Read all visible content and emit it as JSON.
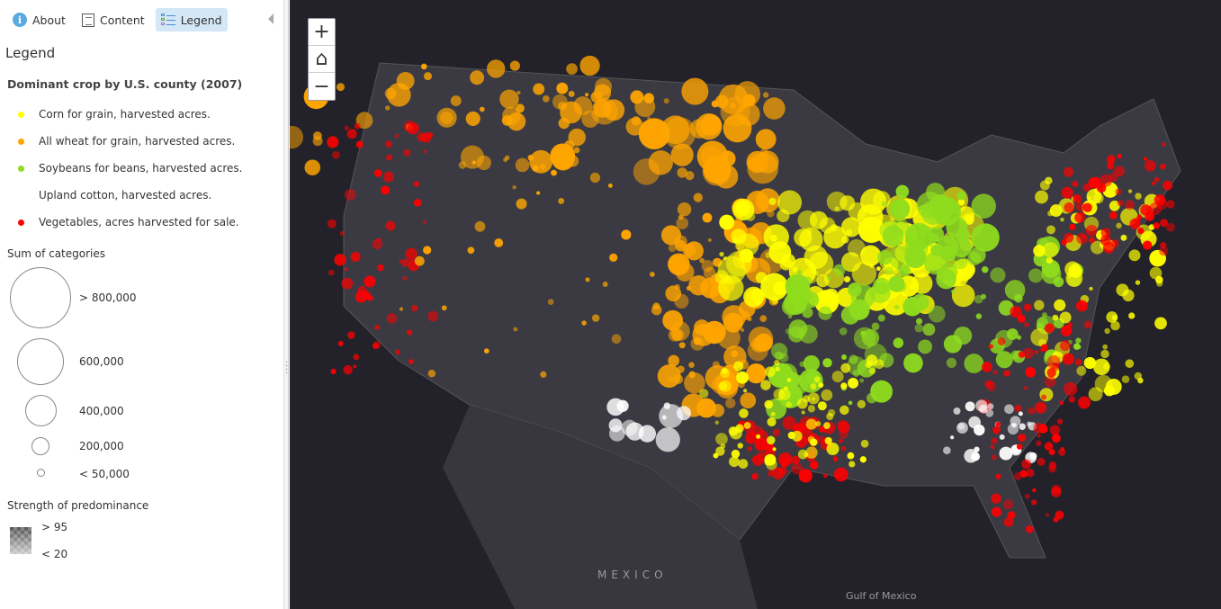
{
  "tabs": [
    {
      "label": "About",
      "icon": "info-icon"
    },
    {
      "label": "Content",
      "icon": "content-icon"
    },
    {
      "label": "Legend",
      "icon": "legend-icon",
      "active": true
    }
  ],
  "legend": {
    "heading": "Legend",
    "layer_title": "Dominant crop by U.S. county (2007)",
    "categories": [
      {
        "label": "Corn for grain, harvested acres.",
        "color": "#ffff00"
      },
      {
        "label": "All wheat for grain, harvested acres.",
        "color": "#ffa500"
      },
      {
        "label": "Soybeans for beans, harvested acres.",
        "color": "#8fdc1e"
      },
      {
        "label": "Upland cotton, harvested acres.",
        "color": "#ffffff"
      },
      {
        "label": "Vegetables, acres harvested for sale.",
        "color": "#ff0000"
      }
    ],
    "size_title": "Sum of categories",
    "sizes": [
      "> 800,000",
      "600,000",
      "400,000",
      "200,000",
      "< 50,000"
    ],
    "strength_title": "Strength of predominance",
    "strength_high": "> 95",
    "strength_low": "< 20"
  },
  "map": {
    "background": "#23222a",
    "zoom_in": "+",
    "home": "⌂",
    "zoom_out": "−",
    "labels": {
      "mexico": "MEXICO",
      "gulf": "Gulf of Mexico"
    }
  }
}
